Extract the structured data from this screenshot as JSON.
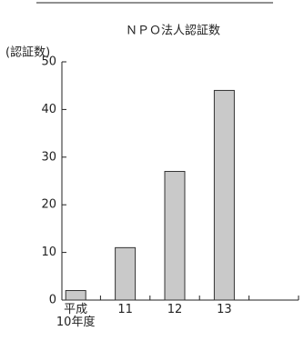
{
  "chart_data": {
    "type": "bar",
    "title": "ＮＰＯ法人認証数",
    "y_label": "(認証数)",
    "categories": [
      "平成\n10年度",
      "11",
      "12",
      "13",
      null
    ],
    "values": [
      2,
      11,
      27,
      44,
      null
    ],
    "color": "#c9c9c9",
    "ylim": [
      0,
      50
    ],
    "yticks": [
      0,
      10,
      20,
      30,
      40,
      50
    ]
  }
}
